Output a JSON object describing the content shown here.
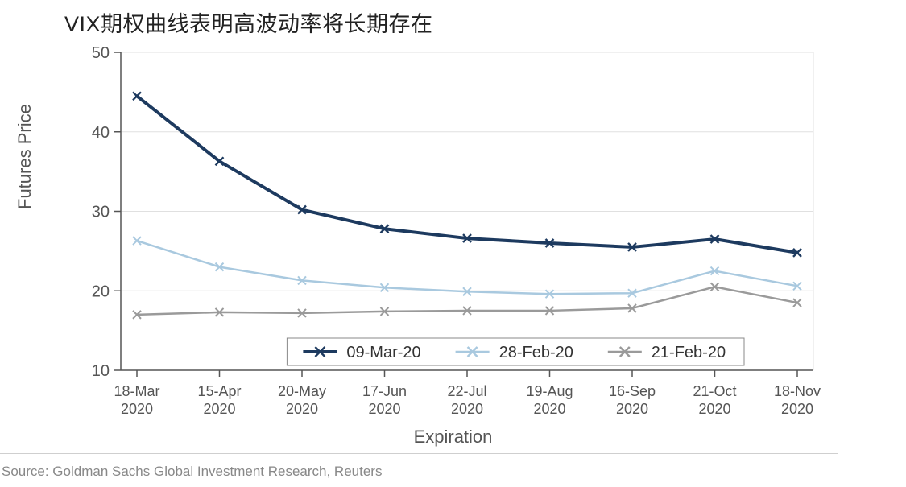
{
  "chart": {
    "type": "line",
    "title": "VIX期权曲线表明高波动率将长期存在",
    "ylabel": "Futures Price",
    "xlabel": "Expiration",
    "background_color": "#ffffff",
    "grid_color": "#e0e0e0",
    "axis_color": "#555555",
    "title_fontsize": 27,
    "label_fontsize": 22,
    "tick_fontsize": 20,
    "ylim": [
      10,
      50
    ],
    "yticks": [
      10,
      20,
      30,
      40,
      50
    ],
    "x_categories": [
      "18-Mar 2020",
      "15-Apr 2020",
      "20-May 2020",
      "17-Jun 2020",
      "22-Jul 2020",
      "19-Aug 2020",
      "16-Sep 2020",
      "21-Oct 2020",
      "18-Nov 2020"
    ],
    "line_width_main": 4,
    "line_width_other": 2.5,
    "marker": "x",
    "marker_size": 10,
    "series": [
      {
        "name": "09-Mar-20",
        "color": "#1d3a5f",
        "line_width": 4,
        "values": [
          44.5,
          36.3,
          30.2,
          27.8,
          26.6,
          26.0,
          25.5,
          26.5,
          24.8
        ]
      },
      {
        "name": "28-Feb-20",
        "color": "#a9c9df",
        "line_width": 2.5,
        "values": [
          26.3,
          23.0,
          21.3,
          20.4,
          19.9,
          19.6,
          19.7,
          22.5,
          20.6
        ]
      },
      {
        "name": "21-Feb-20",
        "color": "#9a9a9a",
        "line_width": 2.5,
        "values": [
          17.0,
          17.3,
          17.2,
          17.4,
          17.5,
          17.5,
          17.8,
          20.5,
          18.5
        ]
      }
    ],
    "legend": {
      "position": "bottom-inside",
      "border_color": "#888888",
      "items": [
        "09-Mar-20",
        "28-Feb-20",
        "21-Feb-20"
      ]
    }
  },
  "source": "Source: Goldman Sachs Global Investment Research, Reuters"
}
